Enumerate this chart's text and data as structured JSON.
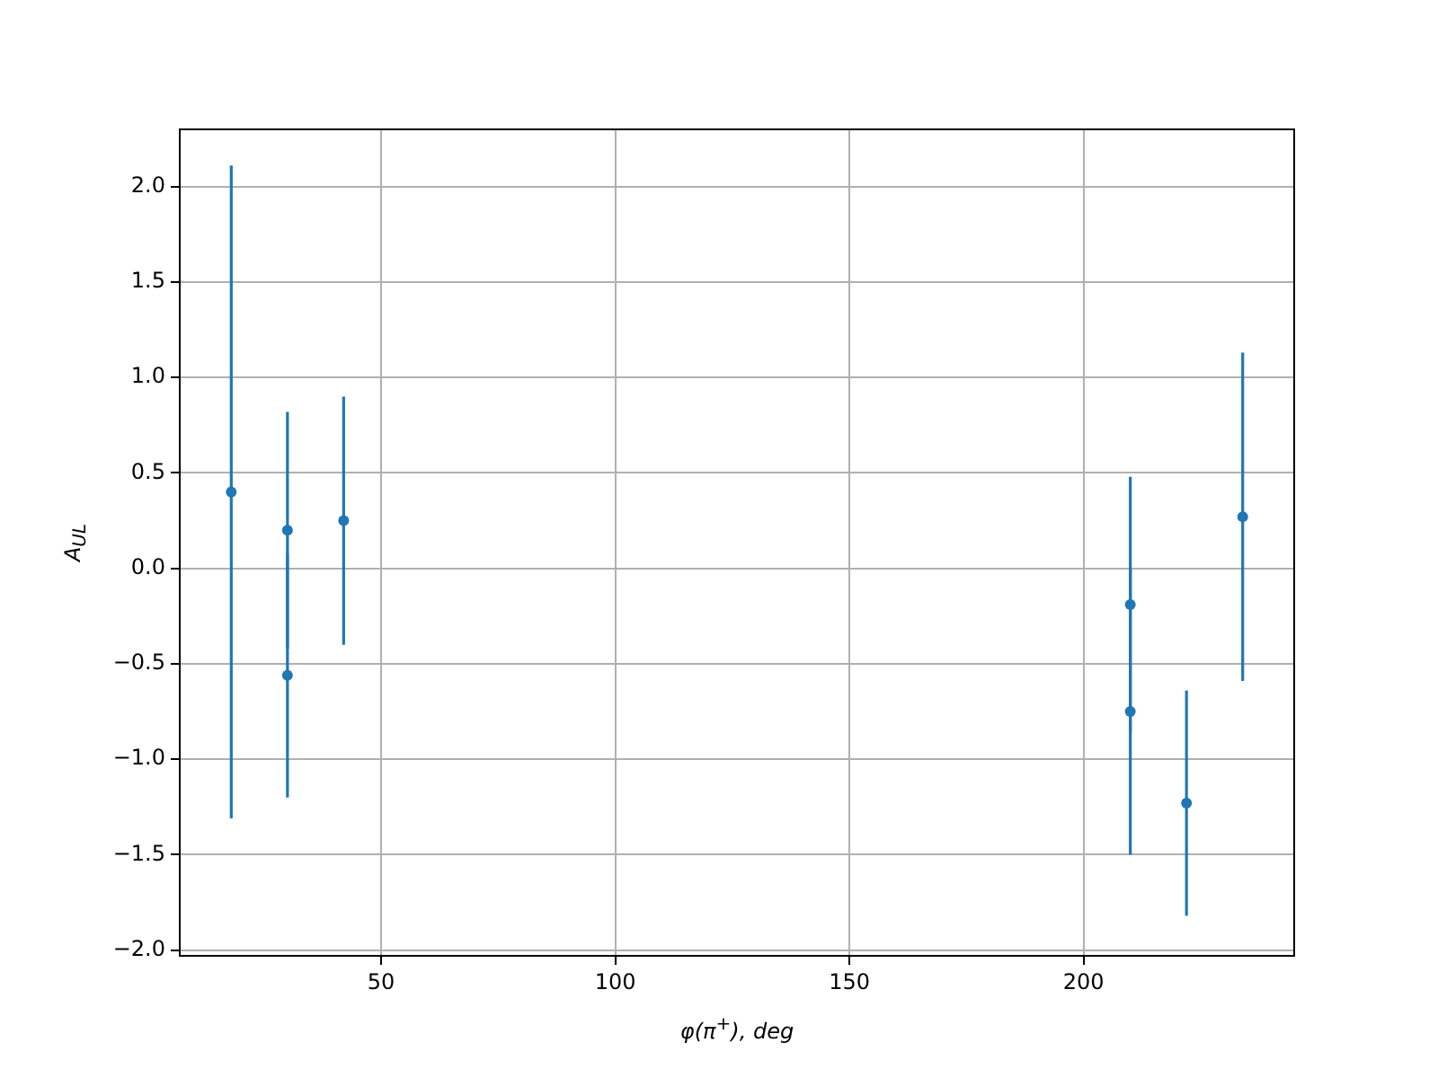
{
  "chart_data": {
    "type": "scatter",
    "xlabel": "φ(π$^{+}$), deg",
    "ylabel": "A$_{UL}$",
    "x": [
      18,
      30,
      30,
      42,
      210,
      210,
      222,
      234
    ],
    "series": [
      {
        "color": "#1f77b4",
        "values": [
          0.4,
          0.2,
          -0.56,
          0.25,
          -0.19,
          -0.75,
          -1.23,
          0.27
        ],
        "errors": [
          1.71,
          0.62,
          0.64,
          0.65,
          0.67,
          0.75,
          0.59,
          0.86
        ]
      }
    ],
    "xlim": [
      7,
      245
    ],
    "xticks": [
      50,
      100,
      150,
      200
    ],
    "ylim": [
      -2.03,
      2.3
    ],
    "yticks": [
      {
        "value": -2,
        "label": "−2.0"
      },
      {
        "value": -1.5,
        "label": "−1.5"
      },
      {
        "value": -1,
        "label": "−1.0"
      },
      {
        "value": -0.5,
        "label": "−0.5"
      },
      {
        "value": 0,
        "label": "0.0"
      },
      {
        "value": 0.5,
        "label": "0.5"
      },
      {
        "value": 1,
        "label": "1.0"
      },
      {
        "value": 1.5,
        "label": "1.5"
      },
      {
        "value": 2,
        "label": "2.0"
      }
    ],
    "grid": true,
    "marker": "circle",
    "legend": false
  }
}
